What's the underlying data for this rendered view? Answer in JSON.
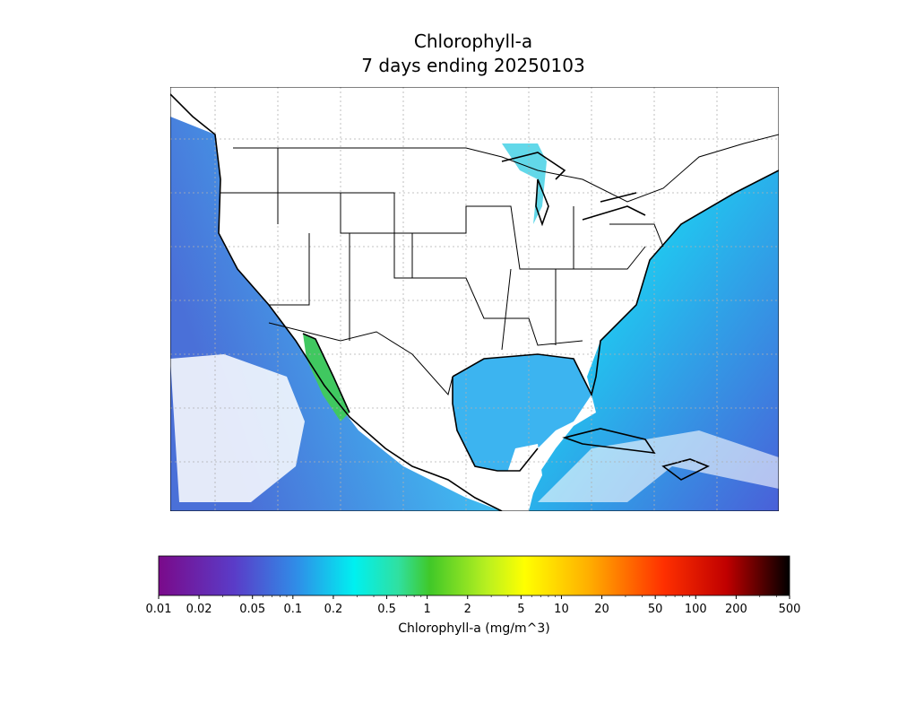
{
  "map": {
    "title": "Chlorophyll-a",
    "subtitle": "7 days ending 20250103"
  },
  "colorbar": {
    "label": "Chlorophyll-a (mg/m^3)",
    "scale": "log",
    "lim": [
      0.01,
      500
    ],
    "ticks": [
      0.01,
      0.02,
      0.05,
      0.1,
      0.2,
      0.5,
      1,
      2,
      5,
      10,
      20,
      50,
      100,
      200,
      500
    ]
  }
}
